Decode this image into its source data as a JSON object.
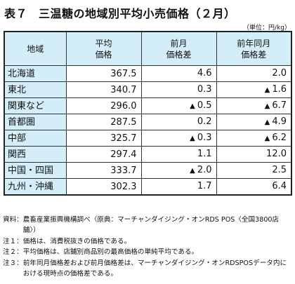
{
  "title": {
    "number": "表７",
    "text": "三温糖の地域別平均小売価格（２月）"
  },
  "unit": "（単位：円/kg）",
  "table": {
    "headers": [
      {
        "lines": [
          "地域"
        ]
      },
      {
        "lines": [
          "平均",
          "価格"
        ]
      },
      {
        "lines": [
          "前月",
          "価格差"
        ]
      },
      {
        "lines": [
          "前年同月",
          "価格差"
        ]
      }
    ],
    "rows": [
      {
        "region": "北海道",
        "price": "367.5",
        "mom_sign": "",
        "mom": "4.6",
        "yoy_sign": "",
        "yoy": "2.0"
      },
      {
        "region": "東北",
        "price": "340.7",
        "mom_sign": "",
        "mom": "0.3",
        "yoy_sign": "▲",
        "yoy": "1.6"
      },
      {
        "region": "関東など",
        "price": "296.0",
        "mom_sign": "▲",
        "mom": "0.5",
        "yoy_sign": "▲",
        "yoy": "6.7"
      },
      {
        "region": "首都圏",
        "price": "287.5",
        "mom_sign": "",
        "mom": "0.2",
        "yoy_sign": "▲",
        "yoy": "4.9"
      },
      {
        "region": "中部",
        "price": "325.7",
        "mom_sign": "▲",
        "mom": "0.3",
        "yoy_sign": "▲",
        "yoy": "6.2"
      },
      {
        "region": "関西",
        "price": "297.4",
        "mom_sign": "",
        "mom": "1.1",
        "yoy_sign": "",
        "yoy": "12.0"
      },
      {
        "region": "中国・四国",
        "price": "333.7",
        "mom_sign": "▲",
        "mom": "2.0",
        "yoy_sign": "",
        "yoy": "2.5"
      },
      {
        "region": "九州・沖縄",
        "price": "302.3",
        "mom_sign": "",
        "mom": "1.7",
        "yoy_sign": "",
        "yoy": "6.4"
      }
    ]
  },
  "notes": [
    {
      "label": "資料：",
      "text": "農畜産業振興機構調べ（原典：マーチャンダイジング・オンRDS POS〈全国3800店舗〉）"
    },
    {
      "label": "注１：",
      "text": "価格は、消費税抜きの価格である。"
    },
    {
      "label": "注２：",
      "text": "平均価格は、店舗別商品別の最高価格の単純平均である。"
    },
    {
      "label": "注３：",
      "text": "前年同月価格差および前月価格差は、マーチャンダイジング・オンRDSPOSデータ内における現時点の価格差である。"
    }
  ]
}
